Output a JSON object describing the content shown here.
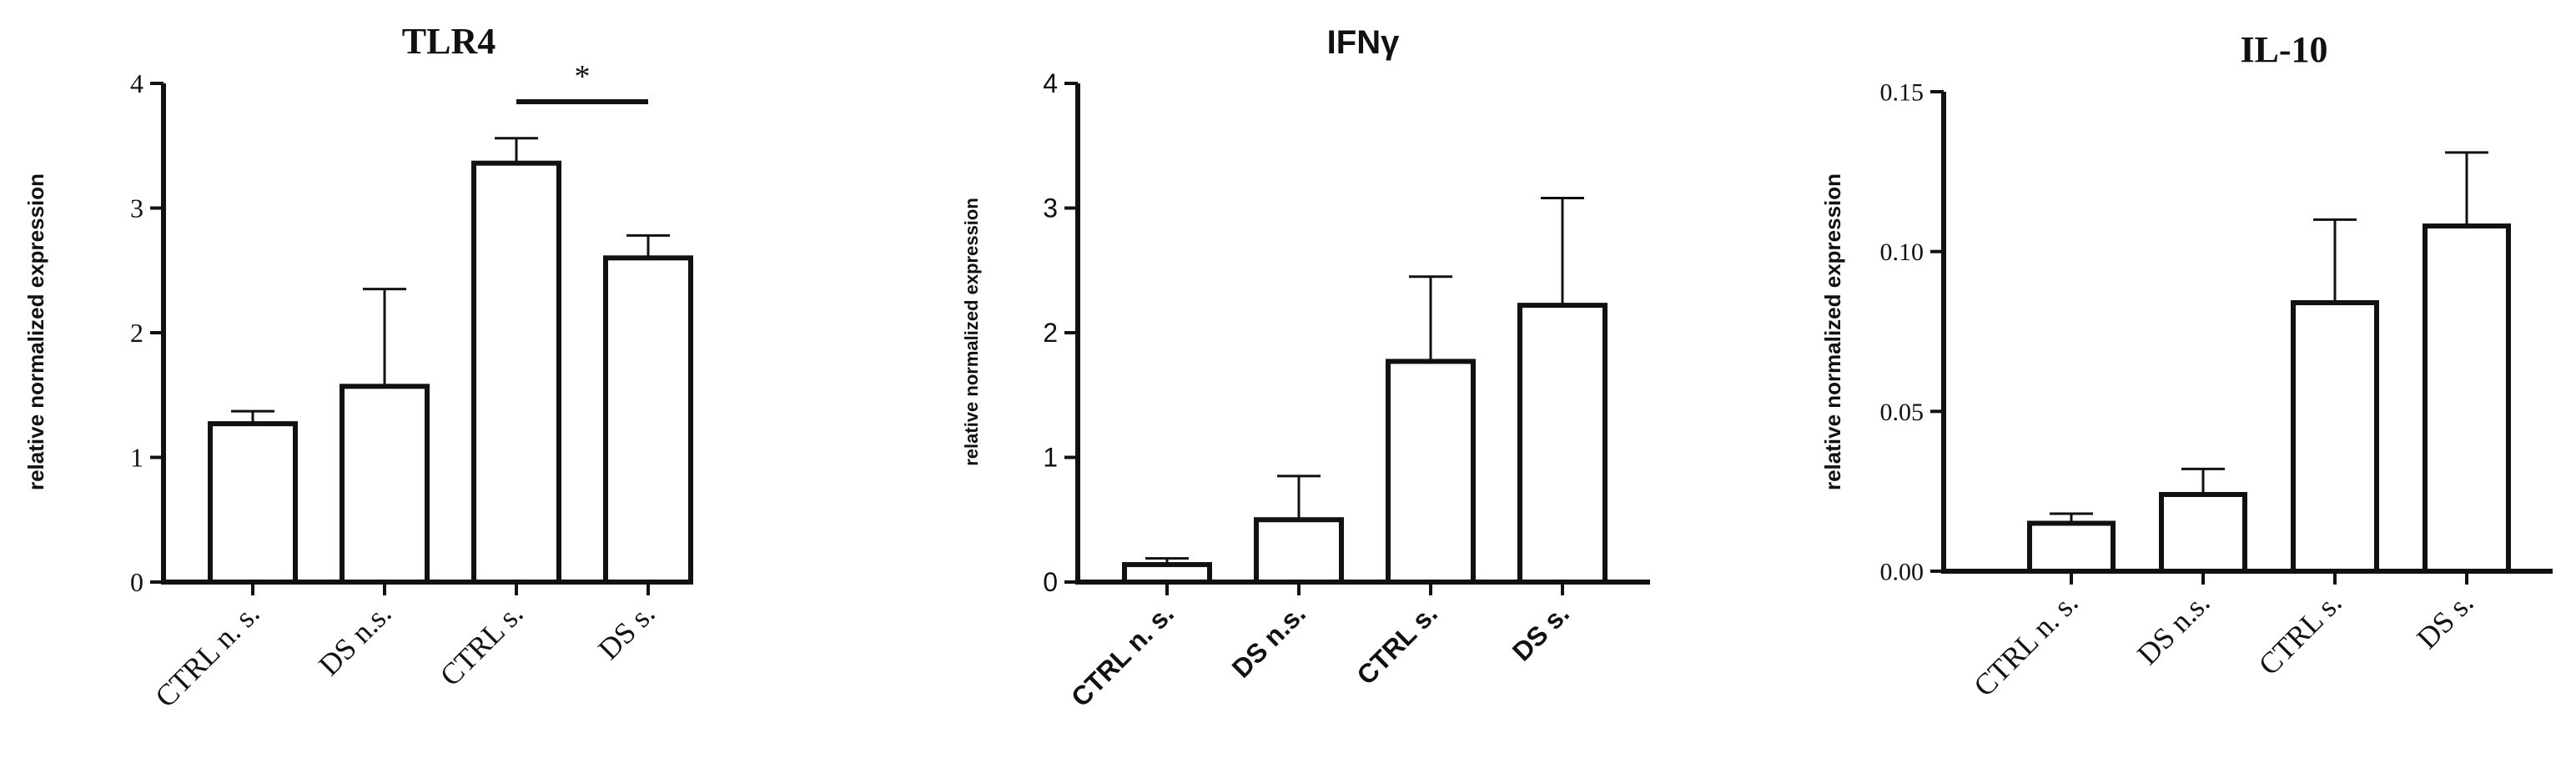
{
  "chart_data": [
    {
      "type": "bar",
      "title": "TLR4",
      "ylabel": "relative normalized expression",
      "categories": [
        "CTRL n. s.",
        "DS n.s.",
        "CTRL s.",
        "DS s."
      ],
      "values": [
        1.27,
        1.57,
        3.36,
        2.6
      ],
      "errors": [
        0.1,
        0.78,
        0.2,
        0.18
      ],
      "ylim": [
        0,
        4
      ],
      "yticks": [
        "0",
        "1",
        "2",
        "3",
        "4"
      ],
      "annotations": [
        {
          "text": "*",
          "between": [
            "CTRL s.",
            "DS s."
          ]
        }
      ],
      "grid": false
    },
    {
      "type": "bar",
      "title": "IFNγ",
      "ylabel": "relative normalized expression",
      "categories": [
        "CTRL n. s.",
        "DS n.s.",
        "CTRL s.",
        "DS s."
      ],
      "values": [
        0.14,
        0.5,
        1.77,
        2.22
      ],
      "errors": [
        0.05,
        0.35,
        0.68,
        0.86
      ],
      "ylim": [
        0,
        4
      ],
      "yticks": [
        "0",
        "1",
        "2",
        "3",
        "4"
      ],
      "grid": false
    },
    {
      "type": "bar",
      "title": "IL-10",
      "ylabel": "relative normalized expression",
      "categories": [
        "CTRL n. s.",
        "DS n.s.",
        "CTRL s.",
        "DS s."
      ],
      "values": [
        0.015,
        0.024,
        0.084,
        0.108
      ],
      "errors": [
        0.003,
        0.008,
        0.026,
        0.023
      ],
      "ylim": [
        0,
        0.15
      ],
      "yticks": [
        "0.00",
        "0.05",
        "0.10",
        "0.15"
      ],
      "grid": false
    }
  ]
}
